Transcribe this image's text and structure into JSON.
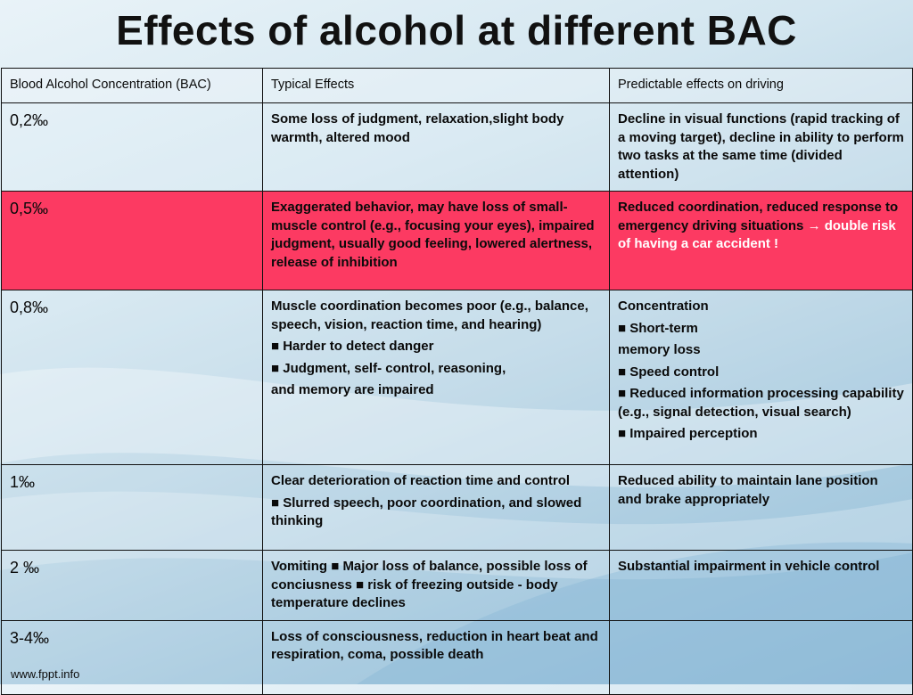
{
  "title": "Effects of alcohol at different BAC",
  "headers": {
    "bac": "Blood Alcohol Concentration (BAC)",
    "typical": "Typical Effects",
    "driving": "Predictable  effects on driving"
  },
  "rows": [
    {
      "bac": "0,2‰",
      "typical": [
        "Some loss of judgment, relaxation,slight body warmth, altered mood"
      ],
      "driving": [
        "Decline in visual functions (rapid tracking of a moving target), decline in ability to perform two tasks at the same time (divided attention)"
      ]
    },
    {
      "bac": "0,5‰",
      "typical": [
        "Exaggerated behavior, may have loss of small-muscle control (e.g., focusing your eyes), impaired judgment, usually good feeling, lowered alertness, release of inhibition"
      ],
      "driving_main": "Reduced coordination, reduced response to emergency driving situations ",
      "driving_arrow": "→",
      "driving_highlight": " double risk of having a car accident !"
    },
    {
      "bac": "0,8‰",
      "typical": [
        "Muscle coordination becomes poor (e.g., balance, speech, vision, reaction time, and hearing)",
        "■ Harder to detect danger",
        "■ Judgment, self- control, reasoning,",
        "and memory are impaired"
      ],
      "driving": [
        "Concentration",
        "■ Short-term",
        "memory loss",
        "■ Speed control",
        "■ Reduced information processing capability (e.g., signal detection, visual search)",
        "■ Impaired perception"
      ]
    },
    {
      "bac": "1‰",
      "typical": [
        "Clear deterioration of reaction time and control",
        "■ Slurred speech, poor coordination, and slowed thinking"
      ],
      "driving": [
        "Reduced ability to maintain lane position and brake appropriately"
      ]
    },
    {
      "bac": "2 ‰",
      "typical": [
        "Vomiting ■ Major loss of balance, possible loss of conciusness ■ risk of freezing outside - body temperature declines"
      ],
      "driving": [
        "Substantial impairment in vehicle control"
      ]
    },
    {
      "bac": "3-4‰",
      "typical": [
        "Loss  of consciousness, reduction in heart beat and respiration, coma, possible death"
      ],
      "driving": []
    }
  ],
  "footer": "www.fppt.info",
  "colors": {
    "highlight_row": "#fc3a62",
    "highlight_text": "#ff1d1d"
  }
}
